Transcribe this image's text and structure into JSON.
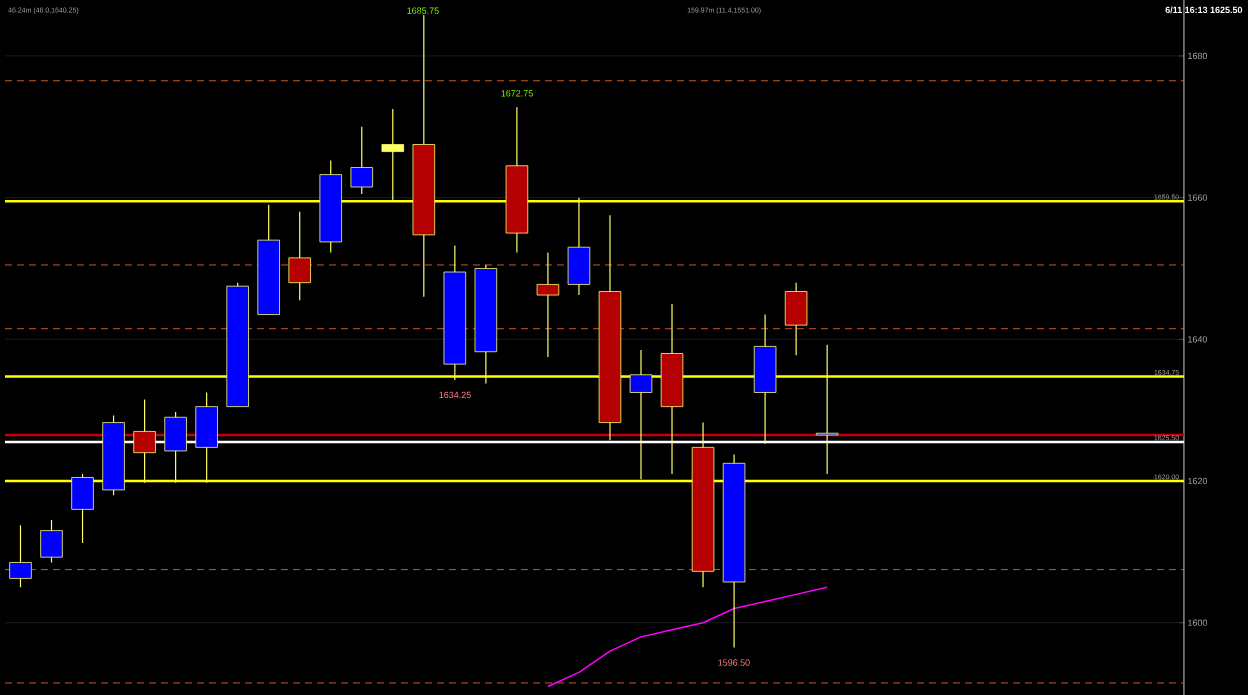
{
  "chart_data": {
    "type": "candlestick",
    "categories": [
      null,
      null,
      null,
      null,
      null,
      null,
      null,
      null,
      null,
      null,
      null,
      null,
      null,
      null,
      null,
      null,
      null,
      null,
      null,
      null,
      null,
      null,
      null,
      null,
      null,
      null,
      null,
      null,
      null,
      null,
      null,
      null,
      null,
      null,
      null,
      null,
      null,
      null
    ],
    "ohlc": [
      [
        1606.25,
        1613.75,
        1605.0,
        1608.5
      ],
      [
        1609.25,
        1614.5,
        1608.5,
        1613.0
      ],
      [
        1616.0,
        1621.0,
        1611.25,
        1620.5
      ],
      [
        1618.75,
        1629.25,
        1618.0,
        1628.25
      ],
      [
        1627.0,
        1631.5,
        1619.75,
        1624.0
      ],
      [
        1624.25,
        1629.75,
        1619.75,
        1629.0
      ],
      [
        1624.75,
        1632.5,
        1619.75,
        1630.5
      ],
      [
        1630.5,
        1648.0,
        1630.5,
        1647.5
      ],
      [
        1643.5,
        1659.0,
        1643.5,
        1654.0
      ],
      [
        1651.5,
        1658.0,
        1645.5,
        1648.0
      ],
      [
        1653.75,
        1665.25,
        1652.25,
        1663.25
      ],
      [
        1661.5,
        1670.0,
        1660.5,
        1664.25
      ],
      [
        1667.5,
        1672.5,
        1659.5,
        1666.5
      ],
      [
        1667.5,
        1685.75,
        1646.0,
        1654.75
      ],
      [
        1636.5,
        1653.25,
        1634.25,
        1649.5
      ],
      [
        1638.25,
        1650.5,
        1633.75,
        1650.0
      ],
      [
        1664.5,
        1672.75,
        1652.25,
        1655.0
      ],
      [
        1647.75,
        1652.25,
        1637.5,
        1646.25
      ],
      [
        1647.75,
        1660.0,
        1646.25,
        1653.0
      ],
      [
        1646.75,
        1657.5,
        1625.75,
        1628.25
      ],
      [
        1632.5,
        1638.5,
        1620.25,
        1635.0
      ],
      [
        1638.0,
        1645.0,
        1621.0,
        1630.5
      ],
      [
        1624.75,
        1628.25,
        1605.0,
        1607.25
      ],
      [
        1605.75,
        1623.75,
        1596.5,
        1622.5
      ],
      [
        1632.5,
        1643.5,
        1625.25,
        1639.0
      ],
      [
        1646.75,
        1648.0,
        1637.75,
        1642.0
      ],
      [
        1626.5,
        1639.25,
        1621.0,
        1626.75
      ],
      null,
      null,
      null,
      null,
      null,
      null,
      null,
      null,
      null,
      null,
      null
    ],
    "colors": [
      "#0000ff",
      "#0000ff",
      "#0000ff",
      "#0000ff",
      "#b40000",
      "#0000ff",
      "#0000ff",
      "#0000ff",
      "#0000ff",
      "#b40000",
      "#0000ff",
      "#0000ff",
      "#ffff66",
      "#b40000",
      "#0000ff",
      "#0000ff",
      "#b40000",
      "#b40000",
      "#0000ff",
      "#b40000",
      "#0000ff",
      "#b40000",
      "#b40000",
      "#0000ff",
      "#0000ff",
      "#b40000",
      "#0000ff",
      null,
      null,
      null,
      null,
      null,
      null,
      null,
      null,
      null,
      null,
      null
    ],
    "series": [
      {
        "type": "line",
        "color": "#ff00ff",
        "values": [
          null,
          null,
          null,
          null,
          null,
          null,
          null,
          null,
          null,
          null,
          null,
          null,
          null,
          null,
          null,
          null,
          null,
          1591,
          1593,
          1596,
          1598,
          1599,
          1600,
          1602,
          1603,
          1604,
          1605,
          null,
          null,
          null,
          null,
          null,
          null,
          null,
          null,
          null,
          null,
          null
        ]
      }
    ],
    "ylim": [
      1589.8,
      1687.9
    ],
    "yticks": [
      1600,
      1620,
      1640,
      1660,
      1680
    ],
    "grid": "y",
    "tick_labels": "y",
    "ref_lines": [
      {
        "axis": "y",
        "value": 1659.5,
        "label": "1659.50",
        "color": "#ffff00"
      },
      {
        "axis": "y",
        "value": 1620.0,
        "label": "1620.00",
        "color": "#ffff00"
      },
      {
        "axis": "y",
        "value": 1626.5,
        "color": "#c80000"
      },
      {
        "axis": "y",
        "value": 1625.5,
        "label": "1625.50",
        "color": "#ffffff"
      },
      {
        "axis": "y",
        "value": 1634.75,
        "label": "1634.75",
        "color": "#ffff00"
      },
      {
        "axis": "y",
        "value": 1676.5,
        "color": "#ff6a33",
        "line_style": "dashed"
      },
      {
        "axis": "y",
        "value": 1650.5,
        "color": "#ff6a33",
        "line_style": "dashed"
      },
      {
        "axis": "y",
        "value": 1641.5,
        "color": "#ff6a33",
        "line_style": "dashed"
      },
      {
        "axis": "y",
        "value": 1607.5,
        "color": "#ff6a33",
        "line_style": "dashed"
      },
      {
        "axis": "y",
        "value": 1591.5,
        "color": "#ff6a33",
        "line_style": "dashed"
      }
    ],
    "annotations": [
      "1685.75",
      "1672.75",
      "1634.25",
      "1596.50",
      "6/11 16:13 1625.50",
      "46.24m (46.0,1640.25)",
      "159.97m (11.4,1551.00)"
    ]
  }
}
